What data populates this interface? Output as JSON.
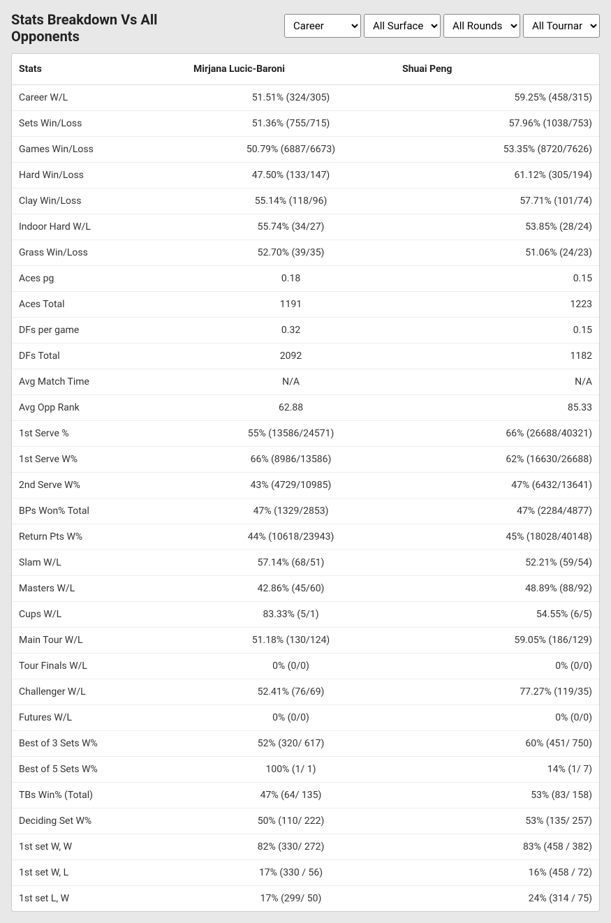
{
  "header": {
    "title": "Stats Breakdown Vs All Opponents",
    "filters": {
      "career": "Career",
      "surface": "All Surfaces",
      "round": "All Rounds",
      "tournament": "All Tournaments"
    }
  },
  "table": {
    "columns": {
      "stats": "Stats",
      "player1": "Mirjana Lucic-Baroni",
      "player2": "Shuai Peng"
    },
    "rows": [
      {
        "stat": "Career W/L",
        "p1": "51.51% (324/305)",
        "p2": "59.25% (458/315)"
      },
      {
        "stat": "Sets Win/Loss",
        "p1": "51.36% (755/715)",
        "p2": "57.96% (1038/753)"
      },
      {
        "stat": "Games Win/Loss",
        "p1": "50.79% (6887/6673)",
        "p2": "53.35% (8720/7626)"
      },
      {
        "stat": "Hard Win/Loss",
        "p1": "47.50% (133/147)",
        "p2": "61.12% (305/194)"
      },
      {
        "stat": "Clay Win/Loss",
        "p1": "55.14% (118/96)",
        "p2": "57.71% (101/74)"
      },
      {
        "stat": "Indoor Hard W/L",
        "p1": "55.74% (34/27)",
        "p2": "53.85% (28/24)"
      },
      {
        "stat": "Grass Win/Loss",
        "p1": "52.70% (39/35)",
        "p2": "51.06% (24/23)"
      },
      {
        "stat": "Aces pg",
        "p1": "0.18",
        "p2": "0.15"
      },
      {
        "stat": "Aces Total",
        "p1": "1191",
        "p2": "1223"
      },
      {
        "stat": "DFs per game",
        "p1": "0.32",
        "p2": "0.15"
      },
      {
        "stat": "DFs Total",
        "p1": "2092",
        "p2": "1182"
      },
      {
        "stat": "Avg Match Time",
        "p1": "N/A",
        "p2": "N/A"
      },
      {
        "stat": "Avg Opp Rank",
        "p1": "62.88",
        "p2": "85.33"
      },
      {
        "stat": "1st Serve %",
        "p1": "55% (13586/24571)",
        "p2": "66% (26688/40321)"
      },
      {
        "stat": "1st Serve W%",
        "p1": "66% (8986/13586)",
        "p2": "62% (16630/26688)"
      },
      {
        "stat": "2nd Serve W%",
        "p1": "43% (4729/10985)",
        "p2": "47% (6432/13641)"
      },
      {
        "stat": "BPs Won% Total",
        "p1": "47% (1329/2853)",
        "p2": "47% (2284/4877)"
      },
      {
        "stat": "Return Pts W%",
        "p1": "44% (10618/23943)",
        "p2": "45% (18028/40148)"
      },
      {
        "stat": "Slam W/L",
        "p1": "57.14% (68/51)",
        "p2": "52.21% (59/54)"
      },
      {
        "stat": "Masters W/L",
        "p1": "42.86% (45/60)",
        "p2": "48.89% (88/92)"
      },
      {
        "stat": "Cups W/L",
        "p1": "83.33% (5/1)",
        "p2": "54.55% (6/5)"
      },
      {
        "stat": "Main Tour W/L",
        "p1": "51.18% (130/124)",
        "p2": "59.05% (186/129)"
      },
      {
        "stat": "Tour Finals W/L",
        "p1": "0% (0/0)",
        "p2": "0% (0/0)"
      },
      {
        "stat": "Challenger W/L",
        "p1": "52.41% (76/69)",
        "p2": "77.27% (119/35)"
      },
      {
        "stat": "Futures W/L",
        "p1": "0% (0/0)",
        "p2": "0% (0/0)"
      },
      {
        "stat": "Best of 3 Sets W%",
        "p1": "52% (320/ 617)",
        "p2": "60% (451/ 750)"
      },
      {
        "stat": "Best of 5 Sets W%",
        "p1": "100% (1/ 1)",
        "p2": "14% (1/ 7)"
      },
      {
        "stat": "TBs Win% (Total)",
        "p1": "47% (64/ 135)",
        "p2": "53% (83/ 158)"
      },
      {
        "stat": "Deciding Set W%",
        "p1": "50% (110/ 222)",
        "p2": "53% (135/ 257)"
      },
      {
        "stat": "1st set W, W",
        "p1": "82% (330/ 272)",
        "p2": "83% (458 / 382)"
      },
      {
        "stat": "1st set W, L",
        "p1": "17% (330 / 56)",
        "p2": "16% (458 / 72)"
      },
      {
        "stat": "1st set L, W",
        "p1": "17% (299/ 50)",
        "p2": "24% (314 / 75)"
      }
    ]
  }
}
